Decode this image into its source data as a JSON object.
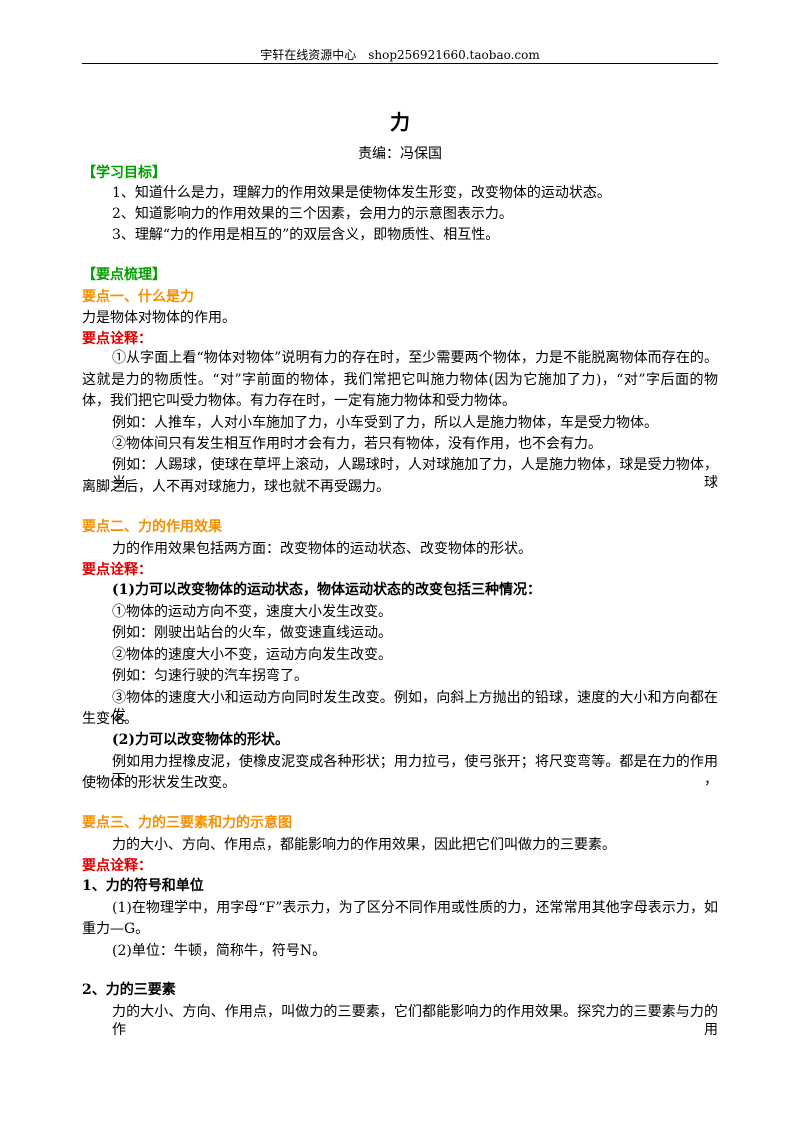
{
  "header": "宇轩在线资源中心　shop256921660.taobao.com",
  "title": "力",
  "editor": "责编：冯保国",
  "lines": [
    "【学习目标】",
    "1、知道什么是力，理解力的作用效果是使物体发生形变，改变物体的运动状态。",
    "2、知道影响力的作用效果的三个因素，会用力的示意图表示力。",
    "3、理解“力的作用是相互的”的双层含义，即物质性、相互性。",
    "【要点梳理】",
    "要点一、什么是力",
    "力是物体对物体的作用。",
    "要点诠释：",
    "①从字面上看“物体对物体”说明有力的存在时，至少需要两个物体，力是不能脱离物体而存在的。",
    "这就是力的物质性。“对”字前面的物体，我们常把它叫施力物体(因为它施加了力)，“对”字后面的物",
    "体，我们把它叫受力物体。有力存在时，一定有施力物体和受力物体。",
    "例如：人推车，人对小车施加了力，小车受到了力，所以人是施力物体，车是受力物体。",
    "②物体间只有发生相互作用时才会有力，若只有物体，没有作用，也不会有力。",
    "例如：人踢球，使球在草坪上滚动，人踢球时，人对球施加了力，人是施力物体，球是受力物体，当球",
    "离脚之后，人不再对球施力，球也就不再受踢力。",
    "要点二、力的作用效果",
    "力的作用效果包括两方面：改变物体的运动状态、改变物体的形状。",
    "要点诠释：",
    "(1)力可以改变物体的运动状态，物体运动状态的改变包括三种情况：",
    "①物体的运动方向不变，速度大小发生改变。",
    "例如：刚驶出站台的火车，做变速直线运动。",
    "②物体的速度大小不变，运动方向发生改变。",
    "例如：匀速行驶的汽车拐弯了。",
    "③物体的速度大小和运动方向同时发生改变。例如，向斜上方抛出的铅球，速度的大小和方向都在发",
    "生变化。",
    "(2)力可以改变物体的形状。",
    "例如用力捏橡皮泥，使橡皮泥变成各种形状；用力拉弓，使弓张开；将尺变弯等。都是在力的作用下，",
    "使物体的形状发生改变。",
    "要点三、力的三要素和力的示意图",
    "力的大小、方向、作用点，都能影响力的作用效果，因此把它们叫做力的三要素。",
    "要点诠释：",
    "1、力的符号和单位",
    "(1)在物理学中，用字母“F”表示力，为了区分不同作用或性质的力，还常常用其他字母表示力，如",
    "重力—G。",
    "(2)单位：牛顿，简称牛，符号N。",
    "2、力的三要素",
    "力的大小、方向、作用点，叫做力的三要素，它们都能影响力的作用效果。探究力的三要素与力的作用"
  ]
}
